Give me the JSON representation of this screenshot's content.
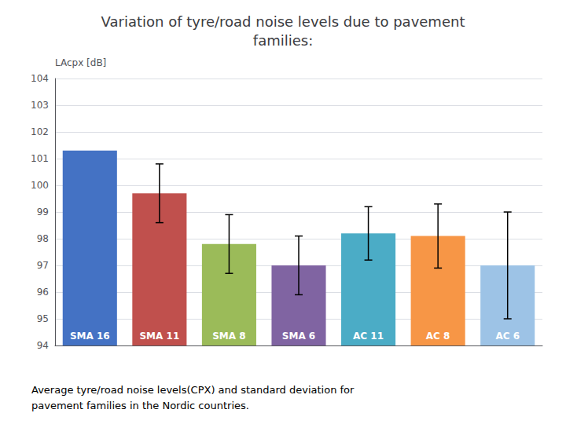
{
  "chart_data": {
    "type": "bar",
    "title": "Variation of tyre/road noise levels due to pavement\nfamilies:",
    "ylabel": "LAcpx [dB]",
    "categories": [
      "SMA 16",
      "SMA 11",
      "SMA 8",
      "SMA 6",
      "AC 11",
      "AC 8",
      "AC 6"
    ],
    "values": [
      101.3,
      99.7,
      97.8,
      97.0,
      98.2,
      98.1,
      97.0
    ],
    "errors": [
      0.0,
      1.1,
      1.1,
      1.1,
      1.0,
      1.2,
      2.0
    ],
    "colors": [
      "#4472C4",
      "#C0504D",
      "#9BBB59",
      "#8064A2",
      "#4BACC6",
      "#F79646",
      "#9DC3E6"
    ],
    "ylim": [
      94,
      104
    ],
    "yticks": [
      94,
      95,
      96,
      97,
      98,
      99,
      100,
      101,
      102,
      103,
      104
    ],
    "grid": true,
    "tick_labels": "y",
    "annotations": [
      "Average tyre/road noise levels(CPX) and standard deviation for\npavement families in the Nordic countries."
    ]
  }
}
